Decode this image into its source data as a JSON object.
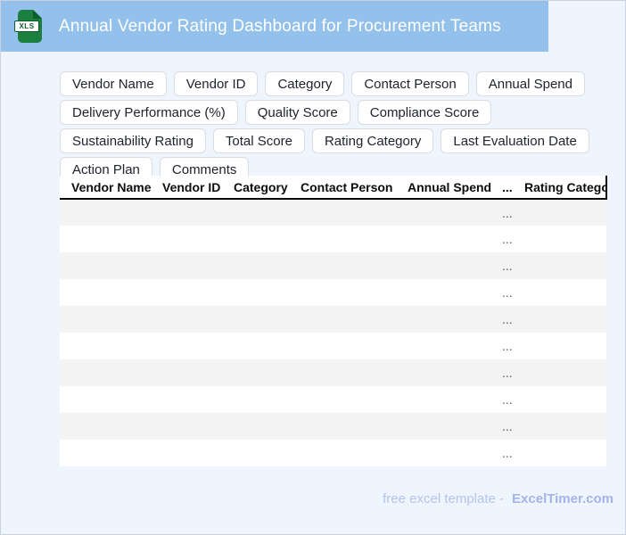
{
  "window": {
    "title": "Annual Vendor Rating Dashboard for Procurement Teams",
    "file_icon_label": "XLS"
  },
  "colors": {
    "header_bg": "#93c1ec",
    "page_bg": "#eff5fd",
    "page_border": "#c8d2e0",
    "chip_border": "#d8dce5",
    "stripe": "#f4f4f5",
    "dots_color": "#4a586b",
    "footer_text": "#b7c3ee",
    "footer_brand": "#a5b3e9",
    "icon_green": "#1b7f3f",
    "icon_green_dark": "#0c5c2c"
  },
  "field_chips": [
    "Vendor Name",
    "Vendor ID",
    "Category",
    "Contact Person",
    "Annual Spend",
    "Delivery Performance (%)",
    "Quality Score",
    "Compliance Score",
    "Sustainability Rating",
    "Total Score",
    "Rating Category",
    "Last Evaluation Date",
    "Action Plan",
    "Comments"
  ],
  "table": {
    "columns": [
      "Vendor Name",
      "Vendor ID",
      "Category",
      "Contact Person",
      "Annual Spend",
      "...",
      "Rating Category"
    ],
    "row_count": 10,
    "placeholder": "...",
    "placeholder_column": 5
  },
  "footer": {
    "text": "free excel template -",
    "brand": "ExcelTimer.com"
  }
}
